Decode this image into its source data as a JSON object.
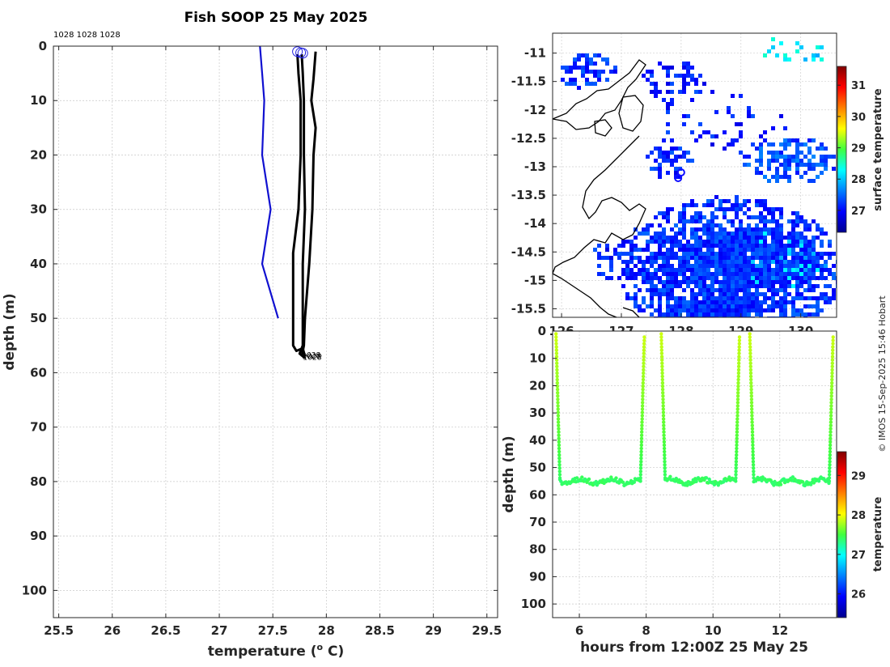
{
  "title": "Fish SOOP 25 May 2025",
  "copyright": "© IMOS 15-Sep-2025 15:46 Hobart",
  "profile": {
    "type": "line",
    "label_top": "1028 1028 1028",
    "xlabel": "temperature (",
    "xlabel_sup": "o",
    "xlabel_end": " C)",
    "ylabel": "depth (m)",
    "xlim": [
      25.45,
      29.6
    ],
    "ylim": [
      105,
      0
    ],
    "xticks": [
      25.5,
      26,
      26.5,
      27,
      27.5,
      28,
      28.5,
      29,
      29.5
    ],
    "yticks": [
      0,
      10,
      20,
      30,
      40,
      50,
      60,
      70,
      80,
      90,
      100
    ],
    "end_label": "1028",
    "series": [
      {
        "name": "climatology",
        "color": "#1010d0",
        "points": [
          [
            27.38,
            0
          ],
          [
            27.4,
            5
          ],
          [
            27.42,
            10
          ],
          [
            27.4,
            20
          ],
          [
            27.48,
            30
          ],
          [
            27.4,
            40
          ],
          [
            27.55,
            50
          ]
        ]
      },
      {
        "name": "profile 1",
        "color": "#000000",
        "points": [
          [
            27.73,
            1.5
          ],
          [
            27.74,
            5
          ],
          [
            27.76,
            10
          ],
          [
            27.76,
            20
          ],
          [
            27.74,
            30
          ],
          [
            27.69,
            38
          ],
          [
            27.69,
            55
          ],
          [
            27.72,
            56
          ],
          [
            27.78,
            55.5
          ],
          [
            27.8,
            57
          ]
        ]
      },
      {
        "name": "profile 2",
        "color": "#000000",
        "points": [
          [
            27.77,
            1.5
          ],
          [
            27.78,
            5
          ],
          [
            27.79,
            10
          ],
          [
            27.79,
            20
          ],
          [
            27.8,
            30
          ],
          [
            27.78,
            40
          ],
          [
            27.78,
            55
          ],
          [
            27.75,
            56.5
          ],
          [
            27.8,
            57.3
          ]
        ]
      },
      {
        "name": "profile 3",
        "color": "#000000",
        "points": [
          [
            27.9,
            1
          ],
          [
            27.88,
            6
          ],
          [
            27.86,
            10
          ],
          [
            27.9,
            15
          ],
          [
            27.88,
            20
          ],
          [
            27.87,
            30
          ],
          [
            27.84,
            40
          ],
          [
            27.8,
            50
          ],
          [
            27.79,
            55
          ],
          [
            27.77,
            57
          ]
        ]
      }
    ],
    "start_markers": [
      [
        27.73,
        1
      ],
      [
        27.76,
        1.2
      ],
      [
        27.78,
        1.3
      ]
    ]
  },
  "map": {
    "type": "heatmap",
    "yticks": [
      "-11",
      "-11.5",
      "-12",
      "-12.5",
      "-13",
      "-13.5",
      "-14",
      "-14.5",
      "-15",
      "-15.5"
    ],
    "ytick_values": [
      -11,
      -11.5,
      -12,
      -12.5,
      -13,
      -13.5,
      -14,
      -14.5,
      -15,
      -15.5
    ],
    "xticks": [
      "126",
      "127",
      "128",
      "129",
      "130"
    ],
    "xtick_values": [
      126,
      127,
      128,
      129,
      130
    ],
    "lon_range": [
      125.85,
      130.6
    ],
    "lat_range": [
      -15.65,
      -10.65
    ],
    "colorbar_label": "surface temperature",
    "colorbar_ticks": [
      "27",
      "28",
      "29",
      "30",
      "31"
    ],
    "colorbar_values": [
      27,
      28,
      29,
      30,
      31
    ],
    "colorbar_range": [
      26.3,
      31.6
    ],
    "positions": [
      [
        128.0,
        -13.1
      ],
      [
        127.95,
        -13.2
      ]
    ]
  },
  "timeseries": {
    "type": "scatter",
    "xlabel": "hours from 12:00Z 25 May 25",
    "ylabel": "depth (m)",
    "xlim": [
      5.2,
      13.7
    ],
    "ylim": [
      105,
      0
    ],
    "xticks": [
      6,
      8,
      10,
      12
    ],
    "yticks": [
      0,
      10,
      20,
      30,
      40,
      50,
      60,
      70,
      80,
      90,
      100
    ],
    "colorbar_label": "temperature",
    "colorbar_ticks": [
      "26",
      "27",
      "28",
      "29"
    ],
    "colorbar_values": [
      26,
      27,
      28,
      29
    ],
    "colorbar_range": [
      25.4,
      29.6
    ],
    "dive_segments": [
      [
        5.3,
        7.95
      ],
      [
        8.45,
        10.8
      ],
      [
        11.1,
        13.6
      ]
    ],
    "surface_temp": 27.9,
    "bottom_temp": 27.4,
    "bottom_depth": 55
  }
}
